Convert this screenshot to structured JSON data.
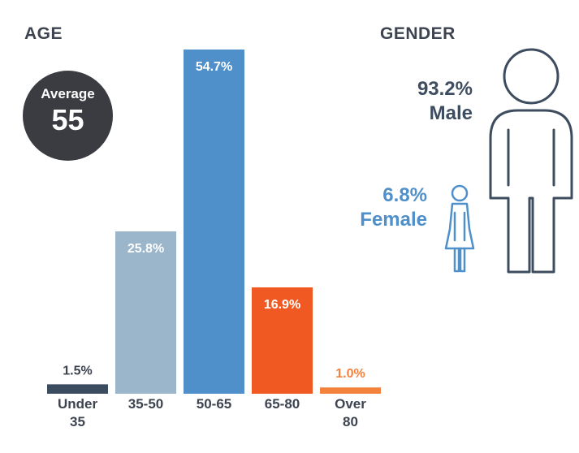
{
  "age": {
    "title": "AGE",
    "average_label": "Average",
    "average_value": "55"
  },
  "gender": {
    "title": "GENDER",
    "male_pct": "93.2%",
    "male_label": "Male",
    "female_pct": "6.8%",
    "female_label": "Female",
    "colors": {
      "male": "#3d4c5e",
      "female": "#4f8fca"
    }
  },
  "chart_data": {
    "type": "bar",
    "categories": [
      [
        "Under",
        "35"
      ],
      [
        "35-50"
      ],
      [
        "50-65"
      ],
      [
        "65-80"
      ],
      [
        "Over",
        "80"
      ]
    ],
    "values": [
      1.5,
      25.8,
      54.7,
      16.9,
      1.0
    ],
    "value_labels": [
      "1.5%",
      "25.8%",
      "54.7%",
      "16.9%",
      "1.0%"
    ],
    "colors": [
      "#3b4c61",
      "#9bb5cb",
      "#4f8fca",
      "#f05a22",
      "#f3823c"
    ],
    "label_colors": [
      "#3d4450",
      "#ffffff",
      "#ffffff",
      "#ffffff",
      "#f3823c"
    ],
    "ylim": [
      0,
      54.7
    ],
    "grid": false,
    "legend": "none"
  }
}
